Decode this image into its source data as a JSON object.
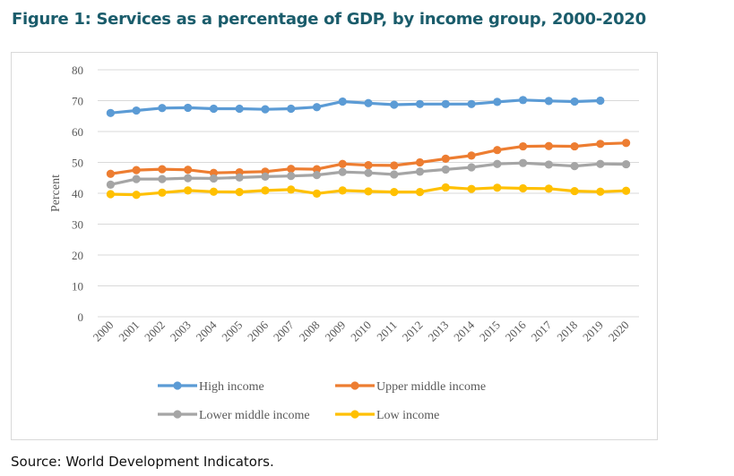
{
  "title": "Figure 1: Services as a percentage of GDP, by income group, 2000-2020",
  "source": "Source: World Development Indicators.",
  "chart_data": {
    "type": "line",
    "title": "",
    "xlabel": "",
    "ylabel": "Percent",
    "ylim": [
      0,
      80
    ],
    "yticks": [
      "0",
      "10",
      "20",
      "30",
      "40",
      "50",
      "60",
      "70",
      "80"
    ],
    "categories": [
      "2000",
      "2001",
      "2002",
      "2003",
      "2004",
      "2005",
      "2006",
      "2007",
      "2008",
      "2009",
      "2010",
      "2011",
      "2012",
      "2013",
      "2014",
      "2015",
      "2016",
      "2017",
      "2018",
      "2019",
      "2020"
    ],
    "grid": true,
    "legend_position": "bottom",
    "series": [
      {
        "name": "High income",
        "color": "#5b9bd5",
        "values": [
          66.0,
          66.8,
          67.6,
          67.7,
          67.4,
          67.4,
          67.2,
          67.4,
          67.9,
          69.7,
          69.2,
          68.7,
          68.9,
          68.9,
          68.9,
          69.6,
          70.2,
          69.9,
          69.7,
          70.0,
          null
        ]
      },
      {
        "name": "Upper middle income",
        "color": "#ed7d31",
        "values": [
          46.3,
          47.5,
          47.8,
          47.6,
          46.6,
          46.8,
          47.0,
          47.9,
          47.8,
          49.5,
          49.1,
          49.0,
          50.0,
          51.2,
          52.2,
          54.0,
          55.2,
          55.3,
          55.2,
          56.0,
          56.3
        ]
      },
      {
        "name": "Lower middle income",
        "color": "#a5a5a5",
        "values": [
          42.8,
          44.6,
          44.6,
          44.9,
          44.8,
          45.1,
          45.4,
          45.6,
          45.9,
          46.9,
          46.6,
          46.1,
          47.0,
          47.7,
          48.4,
          49.5,
          49.8,
          49.3,
          48.8,
          49.5,
          49.4
        ]
      },
      {
        "name": "Low income",
        "color": "#ffc000",
        "values": [
          39.7,
          39.5,
          40.2,
          40.9,
          40.5,
          40.4,
          40.9,
          41.2,
          39.9,
          40.9,
          40.6,
          40.4,
          40.4,
          41.9,
          41.4,
          41.8,
          41.6,
          41.5,
          40.7,
          40.5,
          40.8
        ]
      }
    ]
  }
}
